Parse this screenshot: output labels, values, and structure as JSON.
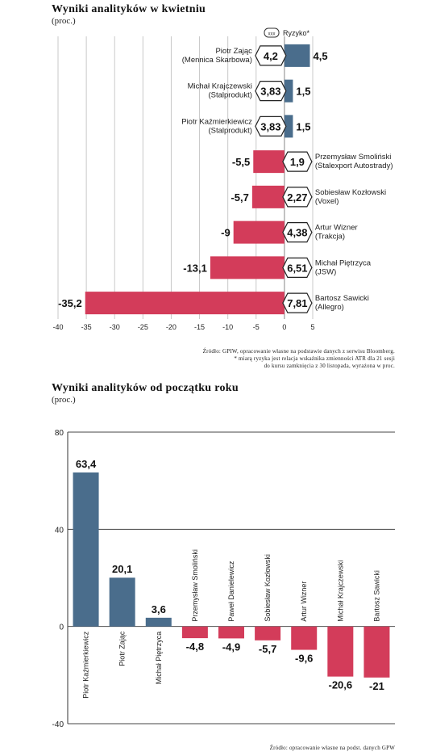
{
  "chart_data": [
    {
      "type": "bar",
      "orientation": "horizontal",
      "title": "Wyniki analityków w kwietniu",
      "subtitle": "(proc.)",
      "xlim": [
        -40,
        5
      ],
      "xticks": [
        "-40",
        "-35",
        "-30",
        "-25",
        "-20",
        "-15",
        "-10",
        "-5",
        "0",
        "5"
      ],
      "legend": {
        "badge_label": "xxx",
        "label": "Ryzyko*"
      },
      "categories": [
        [
          "Piotr Zając",
          "(Mennica Skarbowa)"
        ],
        [
          "Michał Krajczewski",
          "(Stalprodukt)"
        ],
        [
          "Piotr Kaźmierkiewicz",
          "(Stalprodukt)"
        ],
        [
          "Przemysław Smoliński",
          "(Stalexport Autostrady)"
        ],
        [
          "Sobiesław Kozłowski",
          "(Voxel)"
        ],
        [
          "Artur Wizner",
          "(Trakcja)"
        ],
        [
          "Michał Piętrzyca",
          "(JSW)"
        ],
        [
          "Bartosz Sawicki",
          "(Allegro)"
        ]
      ],
      "values": [
        4.5,
        1.5,
        1.5,
        -5.5,
        -5.7,
        -9,
        -13.1,
        -35.2
      ],
      "value_labels": [
        "4,5",
        "1,5",
        "1,5",
        "-5,5",
        "-5,7",
        "-9",
        "-13,1",
        "-35,2"
      ],
      "risk_labels": [
        "4,2",
        "3,83",
        "3,83",
        "1,9",
        "2,27",
        "4,38",
        "6,51",
        "7,81"
      ],
      "colors": {
        "positive": "#4a6d8c",
        "negative": "#d33c5a"
      },
      "source": [
        "Źródło: GPIW, opracowanie własne na podstawie danych z serwisu Bloomberg.",
        "* miarą ryzyka jest relacja wskaźnika zmienności ATR dla 21 sesji",
        "do kursu zamknięcia z 30 listopada, wyrażona w proc."
      ]
    },
    {
      "type": "bar",
      "title": "Wyniki analityków od początku roku",
      "subtitle": "(proc.)",
      "ylim": [
        -40,
        80
      ],
      "yticks": [
        "80",
        "40",
        "0",
        "-40"
      ],
      "categories": [
        "Piotr Kaźmierkiewicz",
        "Piotr Zając",
        "Michał Piętrzyca",
        "Przemysław Smoliński",
        "Paweł Danielewicz",
        "Sobiesław Kozłowski",
        "Artur Wizner",
        "Michał Krajczewski",
        "Bartosz Sawicki"
      ],
      "values": [
        63.4,
        20.1,
        3.6,
        -4.8,
        -4.9,
        -5.7,
        -9.6,
        -20.6,
        -21
      ],
      "value_labels": [
        "63,4",
        "20,1",
        "3,6",
        "-4,8",
        "-4,9",
        "-5,7",
        "-9,6",
        "-20,6",
        "-21"
      ],
      "colors": {
        "positive": "#4a6d8c",
        "negative": "#d33c5a"
      },
      "source": "Źródło: opracowanie własne na podst. danych GPW"
    }
  ]
}
